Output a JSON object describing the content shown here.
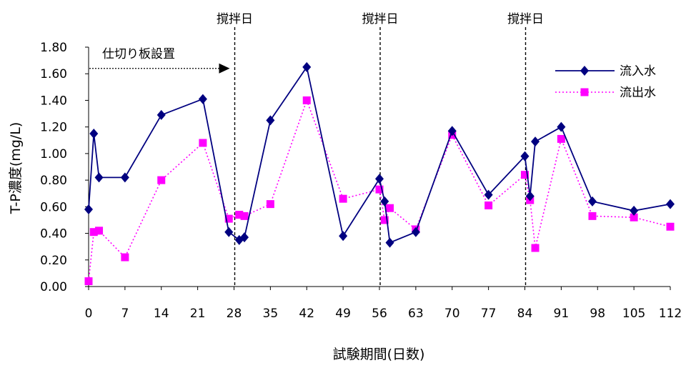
{
  "chart_data": {
    "type": "line",
    "xlabel": "試験期間(日数)",
    "ylabel": "T-P濃度(mg/L)",
    "xlim": [
      0,
      112
    ],
    "ylim": [
      0,
      1.8
    ],
    "x_ticks": [
      "0",
      "7",
      "14",
      "21",
      "28",
      "35",
      "42",
      "49",
      "56",
      "63",
      "70",
      "77",
      "84",
      "91",
      "98",
      "105",
      "112"
    ],
    "y_ticks": [
      "0.00",
      "0.20",
      "0.40",
      "0.60",
      "0.80",
      "1.00",
      "1.20",
      "1.40",
      "1.60",
      "1.80"
    ],
    "grid": false,
    "legend_position": "top-right",
    "series": [
      {
        "name": "流入水",
        "color": "#000080",
        "marker": "diamond",
        "line": "solid",
        "x": [
          0,
          1,
          2,
          7,
          14,
          22,
          27,
          29,
          30,
          35,
          42,
          49,
          56,
          57,
          58,
          63,
          70,
          77,
          84,
          85,
          86,
          91,
          97,
          105,
          112
        ],
        "y": [
          0.58,
          1.15,
          0.82,
          0.82,
          1.29,
          1.41,
          0.41,
          0.35,
          0.37,
          1.25,
          1.65,
          0.38,
          0.81,
          0.64,
          0.33,
          0.41,
          1.17,
          0.69,
          0.98,
          0.68,
          1.09,
          1.2,
          0.64,
          0.57,
          0.62
        ]
      },
      {
        "name": "流出水",
        "color": "#ff00ff",
        "marker": "square",
        "line": "dotted",
        "x": [
          0,
          1,
          2,
          7,
          14,
          22,
          27,
          29,
          30,
          35,
          42,
          49,
          56,
          57,
          58,
          63,
          70,
          77,
          84,
          85,
          86,
          91,
          97,
          105,
          112
        ],
        "y": [
          0.04,
          0.41,
          0.42,
          0.22,
          0.8,
          1.08,
          0.51,
          0.54,
          0.53,
          0.62,
          1.4,
          0.66,
          0.73,
          0.5,
          0.59,
          0.43,
          1.14,
          0.61,
          0.84,
          0.65,
          0.29,
          1.11,
          0.53,
          0.52,
          0.45
        ]
      }
    ],
    "vertical_markers": [
      {
        "x": 28,
        "label": "撹拌日"
      },
      {
        "x": 56,
        "label": "撹拌日"
      },
      {
        "x": 84,
        "label": "撹拌日"
      }
    ],
    "arrow_annotation": {
      "label": "仕切り板設置",
      "x_end": 28,
      "y": 1.64
    }
  }
}
